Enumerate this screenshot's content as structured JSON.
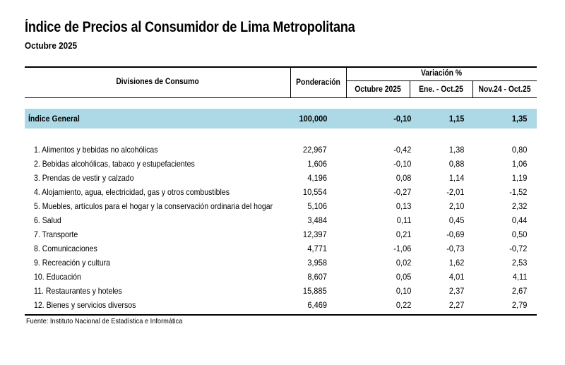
{
  "title": "Índice de Precios al Consumidor de Lima Metropolitana",
  "subtitle": "Octubre 2025",
  "table": {
    "headers": {
      "divisiones": "Divisiones de Consumo",
      "ponderacion": "Ponderación",
      "variacion": "Variación %",
      "octubre": "Octubre 2025",
      "ene_oct": "Ene. - Oct.25",
      "nov_oct": "Nov.24 - Oct.25"
    },
    "general": {
      "label": "Índice General",
      "ponderacion": "100,000",
      "octubre": "-0,10",
      "ene_oct": "1,15",
      "nov_oct": "1,35"
    },
    "rows": [
      {
        "label": "1. Alimentos y bebidas no alcohólicas",
        "ponderacion": "22,967",
        "octubre": "-0,42",
        "ene_oct": "1,38",
        "nov_oct": "0,80"
      },
      {
        "label": "2. Bebidas alcohólicas, tabaco y estupefacientes",
        "ponderacion": "1,606",
        "octubre": "-0,10",
        "ene_oct": "0,88",
        "nov_oct": "1,06"
      },
      {
        "label": "3. Prendas de vestir y calzado",
        "ponderacion": "4,196",
        "octubre": "0,08",
        "ene_oct": "1,14",
        "nov_oct": "1,19"
      },
      {
        "label": "4. Alojamiento, agua, electricidad, gas y otros combustibles",
        "ponderacion": "10,554",
        "octubre": "-0,27",
        "ene_oct": "-2,01",
        "nov_oct": "-1,52"
      },
      {
        "label": "5. Muebles, artículos para el hogar y la conservación ordinaria del hogar",
        "ponderacion": "5,106",
        "octubre": "0,13",
        "ene_oct": "2,10",
        "nov_oct": "2,32"
      },
      {
        "label": "6. Salud",
        "ponderacion": "3,484",
        "octubre": "0,11",
        "ene_oct": "0,45",
        "nov_oct": "0,44"
      },
      {
        "label": "7. Transporte",
        "ponderacion": "12,397",
        "octubre": "0,21",
        "ene_oct": "-0,69",
        "nov_oct": "0,50"
      },
      {
        "label": "8. Comunicaciones",
        "ponderacion": "4,771",
        "octubre": "-1,06",
        "ene_oct": "-0,73",
        "nov_oct": "-0,72"
      },
      {
        "label": "9. Recreación y cultura",
        "ponderacion": "3,958",
        "octubre": "0,02",
        "ene_oct": "1,62",
        "nov_oct": "2,53"
      },
      {
        "label": "10. Educación",
        "ponderacion": "8,607",
        "octubre": "0,05",
        "ene_oct": "4,01",
        "nov_oct": "4,11"
      },
      {
        "label": "11. Restaurantes y hoteles",
        "ponderacion": "15,885",
        "octubre": "0,10",
        "ene_oct": "2,37",
        "nov_oct": "2,67"
      },
      {
        "label": "12. Bienes y servicios diversos",
        "ponderacion": "6,469",
        "octubre": "0,22",
        "ene_oct": "2,27",
        "nov_oct": "2,79"
      }
    ]
  },
  "footer": "Fuente: Instituto Nacional de Estadística e Informática",
  "colors": {
    "band": "#add8e6",
    "rule": "#000000"
  }
}
